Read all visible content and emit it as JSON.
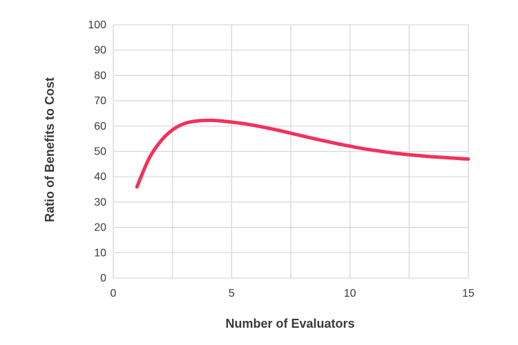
{
  "chart_data": {
    "type": "line",
    "title": "",
    "xlabel": "Number of Evaluators",
    "ylabel": "Ratio of Benefits to Cost",
    "xlim": [
      0,
      15
    ],
    "ylim": [
      0,
      100
    ],
    "x_ticks": [
      "0",
      "5",
      "10",
      "15"
    ],
    "y_ticks": [
      "0",
      "10",
      "20",
      "30",
      "40",
      "50",
      "60",
      "70",
      "80",
      "90",
      "100"
    ],
    "grid": true,
    "legend": "none",
    "series": [
      {
        "color": "#f0325c",
        "x": [
          1,
          1.5,
          2,
          2.5,
          3,
          3.5,
          4,
          4.5,
          5,
          5.5,
          6,
          6.5,
          7,
          7.5,
          8,
          8.5,
          9,
          9.5,
          10,
          10.5,
          11,
          11.5,
          12,
          12.5,
          13,
          13.5,
          14,
          14.5,
          15
        ],
        "y": [
          36,
          47,
          54,
          58.5,
          61,
          62,
          62.3,
          62.1,
          61.6,
          61,
          60.2,
          59.3,
          58.3,
          57.2,
          56.1,
          55,
          54,
          53,
          52.1,
          51.2,
          50.5,
          49.8,
          49.2,
          48.7,
          48.3,
          47.9,
          47.6,
          47.3,
          47
        ]
      }
    ]
  }
}
